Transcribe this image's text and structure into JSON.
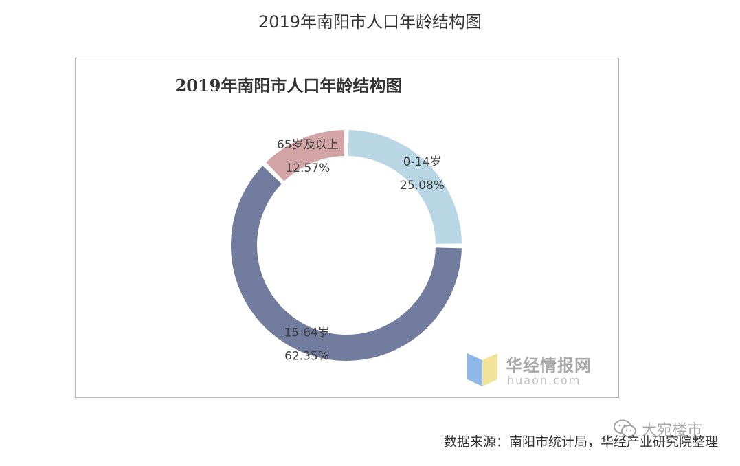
{
  "page_title": "2019年南阳市人口年龄结构图",
  "chart_data": {
    "type": "pie",
    "variant": "donut",
    "title": "2019年南阳市人口年龄结构图",
    "slices": [
      {
        "label": "0-14岁",
        "value": 25.08,
        "value_text": "25.08%",
        "color": "#b9d6e5"
      },
      {
        "label": "15-64岁",
        "value": 62.35,
        "value_text": "62.35%",
        "color": "#717c9f"
      },
      {
        "label": "65岁及以上",
        "value": 12.57,
        "value_text": "12.57%",
        "color": "#d3a4a5"
      }
    ],
    "legend": "none"
  },
  "watermark": {
    "name": "华经情报网",
    "url": "huaon.com",
    "colors": [
      "#8fb8e8",
      "#f2e39a"
    ]
  },
  "source_note": "数据来源：南阳市统计局，华经产业研究院整理",
  "overlay_mark": {
    "icon": "wechat-icon",
    "text": "大宛楼市"
  }
}
